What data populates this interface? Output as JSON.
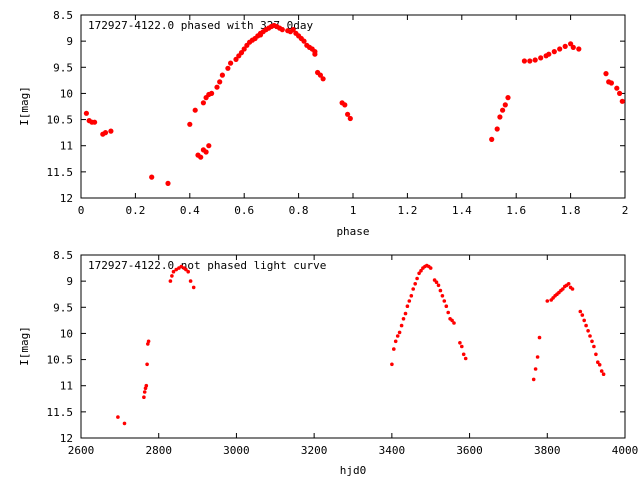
{
  "chart_data": [
    {
      "type": "scatter",
      "title": "172927-4122.0 phased with 327.0day",
      "xlabel": "phase",
      "ylabel": "I[mag]",
      "xlim": [
        0,
        2
      ],
      "ylim": [
        12,
        8.5
      ],
      "y_inverted": true,
      "xticks": [
        "0",
        "0.2",
        "0.4",
        "0.6",
        "0.8",
        "1",
        "1.2",
        "1.4",
        "1.6",
        "1.8",
        "2"
      ],
      "yticks": [
        "8.5",
        "9",
        "9.5",
        "10",
        "10.5",
        "11",
        "11.5",
        "12"
      ],
      "marker_color": "#ff0000",
      "grid": false,
      "x": [
        0.02,
        0.03,
        0.04,
        0.05,
        0.08,
        0.09,
        0.11,
        0.26,
        0.32,
        0.4,
        0.42,
        0.43,
        0.44,
        0.45,
        0.46,
        0.47,
        0.45,
        0.46,
        0.47,
        0.48,
        0.5,
        0.51,
        0.52,
        0.54,
        0.55,
        0.57,
        0.58,
        0.59,
        0.6,
        0.61,
        0.62,
        0.63,
        0.64,
        0.65,
        0.66,
        0.66,
        0.67,
        0.68,
        0.69,
        0.7,
        0.71,
        0.72,
        0.73,
        0.74,
        0.76,
        0.77,
        0.78,
        0.79,
        0.8,
        0.81,
        0.82,
        0.83,
        0.84,
        0.85,
        0.86,
        0.86,
        0.87,
        0.88,
        0.89,
        0.96,
        0.97,
        0.98,
        0.99,
        1.51,
        1.53,
        1.54,
        1.55,
        1.56,
        1.57,
        1.63,
        1.65,
        1.67,
        1.69,
        1.71,
        1.72,
        1.74,
        1.76,
        1.78,
        1.8,
        1.81,
        1.83,
        1.93,
        1.94,
        1.95,
        1.97,
        1.98,
        1.99
      ],
      "y": [
        10.38,
        10.52,
        10.55,
        10.55,
        10.78,
        10.75,
        10.72,
        11.6,
        11.72,
        10.59,
        10.32,
        11.18,
        11.22,
        11.08,
        11.12,
        11.0,
        10.18,
        10.08,
        10.02,
        10.0,
        9.88,
        9.78,
        9.65,
        9.52,
        9.42,
        9.35,
        9.28,
        9.22,
        9.15,
        9.08,
        9.02,
        8.98,
        8.95,
        8.9,
        8.85,
        8.88,
        8.82,
        8.78,
        8.75,
        8.72,
        8.7,
        8.72,
        8.75,
        8.78,
        8.8,
        8.82,
        8.78,
        8.85,
        8.9,
        8.95,
        9.0,
        9.08,
        9.12,
        9.15,
        9.2,
        9.25,
        9.6,
        9.65,
        9.72,
        10.18,
        10.22,
        10.4,
        10.48,
        10.88,
        10.68,
        10.45,
        10.32,
        10.22,
        10.08,
        9.38,
        9.38,
        9.36,
        9.32,
        9.28,
        9.25,
        9.2,
        9.15,
        9.1,
        9.05,
        9.12,
        9.15,
        9.62,
        9.78,
        9.8,
        9.9,
        10.0,
        10.15
      ]
    },
    {
      "type": "scatter",
      "title": "172927-4122.0 not phased light curve",
      "xlabel": "hjd0",
      "ylabel": "I[mag]",
      "xlim": [
        2600,
        4000
      ],
      "ylim": [
        12,
        8.5
      ],
      "y_inverted": true,
      "xticks": [
        "2600",
        "2800",
        "3000",
        "3200",
        "3400",
        "3600",
        "3800",
        "4000"
      ],
      "yticks": [
        "8.5",
        "9",
        "9.5",
        "10",
        "10.5",
        "11",
        "11.5",
        "12"
      ],
      "marker_color": "#ff0000",
      "grid": false,
      "x": [
        2695,
        2712,
        2762,
        2764,
        2766,
        2768,
        2770,
        2772,
        2774,
        2830,
        2834,
        2838,
        2845,
        2852,
        2858,
        2865,
        2870,
        2876,
        2882,
        2890,
        3400,
        3405,
        3410,
        3415,
        3420,
        3425,
        3430,
        3435,
        3440,
        3445,
        3450,
        3455,
        3460,
        3465,
        3470,
        3475,
        3480,
        3485,
        3490,
        3495,
        3500,
        3510,
        3515,
        3520,
        3525,
        3530,
        3535,
        3540,
        3545,
        3550,
        3555,
        3560,
        3575,
        3580,
        3585,
        3590,
        3765,
        3770,
        3775,
        3780,
        3800,
        3810,
        3815,
        3820,
        3825,
        3830,
        3835,
        3840,
        3845,
        3850,
        3855,
        3860,
        3865,
        3885,
        3890,
        3895,
        3900,
        3905,
        3910,
        3915,
        3920,
        3925,
        3930,
        3935,
        3940,
        3945
      ],
      "y": [
        11.6,
        11.72,
        11.22,
        11.12,
        11.05,
        11.0,
        10.59,
        10.2,
        10.15,
        9.0,
        8.9,
        8.82,
        8.78,
        8.75,
        8.72,
        8.75,
        8.78,
        8.82,
        9.0,
        9.12,
        10.59,
        10.3,
        10.15,
        10.05,
        9.98,
        9.85,
        9.72,
        9.62,
        9.48,
        9.38,
        9.28,
        9.15,
        9.05,
        8.95,
        8.85,
        8.8,
        8.75,
        8.72,
        8.7,
        8.72,
        8.75,
        8.98,
        9.02,
        9.08,
        9.18,
        9.28,
        9.38,
        9.48,
        9.6,
        9.72,
        9.75,
        9.8,
        10.18,
        10.25,
        10.4,
        10.48,
        10.88,
        10.68,
        10.45,
        10.08,
        9.38,
        9.36,
        9.32,
        9.28,
        9.25,
        9.22,
        9.18,
        9.15,
        9.1,
        9.08,
        9.05,
        9.12,
        9.15,
        9.58,
        9.65,
        9.75,
        9.85,
        9.95,
        10.05,
        10.15,
        10.25,
        10.4,
        10.55,
        10.6,
        10.72,
        10.78
      ]
    }
  ]
}
